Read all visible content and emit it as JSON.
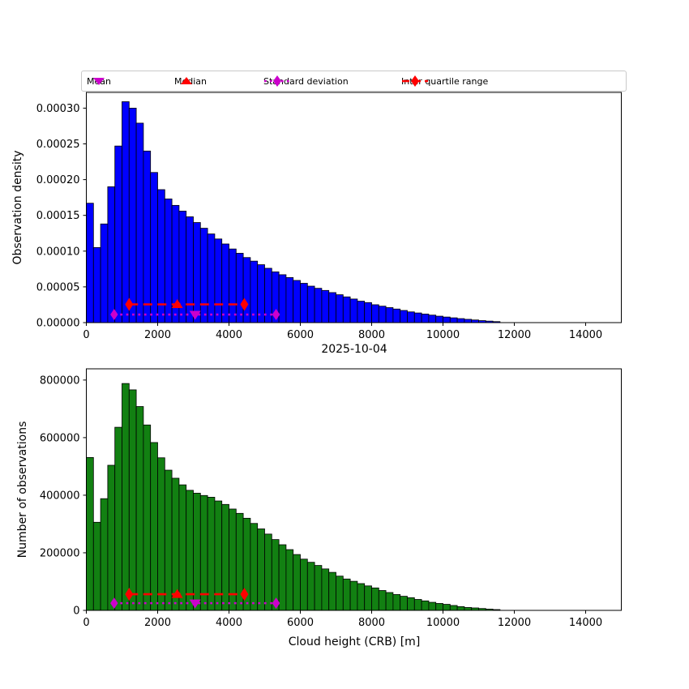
{
  "colors": {
    "bar_top": "#0000FF",
    "bar_bottom": "#128012",
    "bar_edge": "#000000",
    "magenta": "#CC00CC",
    "red": "#FF0000",
    "axis": "#000000"
  },
  "legend": {
    "items": [
      {
        "label": "Mean",
        "marker": "triangle-down-icon",
        "color": "#CC00CC"
      },
      {
        "label": "Median",
        "marker": "triangle-up-icon",
        "color": "#FF0000"
      },
      {
        "label": "Standard deviation",
        "marker": "diamond-dotted-line-icon",
        "color": "#CC00CC"
      },
      {
        "label": "Inter quartile range",
        "marker": "diamond-dashed-line-icon",
        "color": "#FF0000"
      }
    ]
  },
  "markers": {
    "mean_x": 3050,
    "median_x": 2550,
    "std_x1": 780,
    "std_x2": 5320,
    "iqr_x1": 1200,
    "iqr_x2": 4430
  },
  "chart_data": [
    {
      "type": "bar",
      "name": "observation-density-histogram",
      "xlabel": "2025-10-04",
      "ylabel": "Observation density",
      "bar_color": "#0000FF",
      "bin_start": 0,
      "bin_width": 200,
      "xlim": [
        0,
        15000
      ],
      "ylim": [
        0,
        0.000322
      ],
      "xticks": [
        0,
        2000,
        4000,
        6000,
        8000,
        10000,
        12000,
        14000
      ],
      "xtick_labels": [
        "0",
        "2000",
        "4000",
        "6000",
        "8000",
        "10000",
        "12000",
        "14000"
      ],
      "yticks": [
        0,
        5e-05,
        0.0001,
        0.00015,
        0.0002,
        0.00025,
        0.0003
      ],
      "ytick_labels": [
        "0.00000",
        "0.00005",
        "0.00010",
        "0.00015",
        "0.00020",
        "0.00025",
        "0.00030"
      ],
      "grid": false,
      "legend_position": "top",
      "marker_y": {
        "iqr": 2.55e-05,
        "std": 1.13e-05
      },
      "values": [
        0.000167,
        0.000105,
        0.000138,
        0.00019,
        0.000247,
        0.000309,
        0.0003,
        0.000279,
        0.00024,
        0.00021,
        0.000186,
        0.000173,
        0.000164,
        0.000156,
        0.000148,
        0.00014,
        0.000132,
        0.000124,
        0.000117,
        0.00011,
        0.000103,
        9.7e-05,
        9.1e-05,
        8.6e-05,
        8.1e-05,
        7.6e-05,
        7.1e-05,
        6.7e-05,
        6.3e-05,
        5.9e-05,
        5.5e-05,
        5.1e-05,
        4.8e-05,
        4.5e-05,
        4.2e-05,
        3.9e-05,
        3.6e-05,
        3.3e-05,
        3e-05,
        2.8e-05,
        2.5e-05,
        2.3e-05,
        2.1e-05,
        1.9e-05,
        1.7e-05,
        1.5e-05,
        1.35e-05,
        1.2e-05,
        1.05e-05,
        9e-06,
        7.8e-06,
        6.7e-06,
        5.6e-06,
        4.6e-06,
        3.7e-06,
        2.8e-06,
        2.1e-06,
        1.4e-06
      ]
    },
    {
      "type": "bar",
      "name": "observation-count-histogram",
      "xlabel": "Cloud height (CRB) [m]",
      "ylabel": "Number of observations",
      "bar_color": "#128012",
      "bin_start": 0,
      "bin_width": 200,
      "xlim": [
        0,
        15000
      ],
      "ylim": [
        0,
        839000
      ],
      "xticks": [
        0,
        2000,
        4000,
        6000,
        8000,
        10000,
        12000,
        14000
      ],
      "xtick_labels": [
        "0",
        "2000",
        "4000",
        "6000",
        "8000",
        "10000",
        "12000",
        "14000"
      ],
      "yticks": [
        0,
        200000,
        400000,
        600000,
        800000
      ],
      "ytick_labels": [
        "0",
        "200000",
        "400000",
        "600000",
        "800000"
      ],
      "grid": false,
      "legend_position": "none",
      "marker_y": {
        "iqr": 56000,
        "std": 25000
      },
      "values": [
        531000,
        306000,
        388000,
        504000,
        636000,
        788000,
        766000,
        708000,
        644000,
        583000,
        530000,
        487000,
        459000,
        436000,
        417000,
        407000,
        399000,
        393000,
        380000,
        368000,
        352000,
        337000,
        320000,
        302000,
        283000,
        265000,
        246000,
        228000,
        211000,
        194000,
        178000,
        167000,
        156000,
        144000,
        132000,
        119000,
        109000,
        101000,
        93000,
        85000,
        78000,
        69000,
        62000,
        55000,
        49000,
        44000,
        38000,
        33000,
        28000,
        24000,
        21000,
        17000,
        13000,
        10000,
        8500,
        6500,
        4500,
        2800
      ]
    }
  ]
}
